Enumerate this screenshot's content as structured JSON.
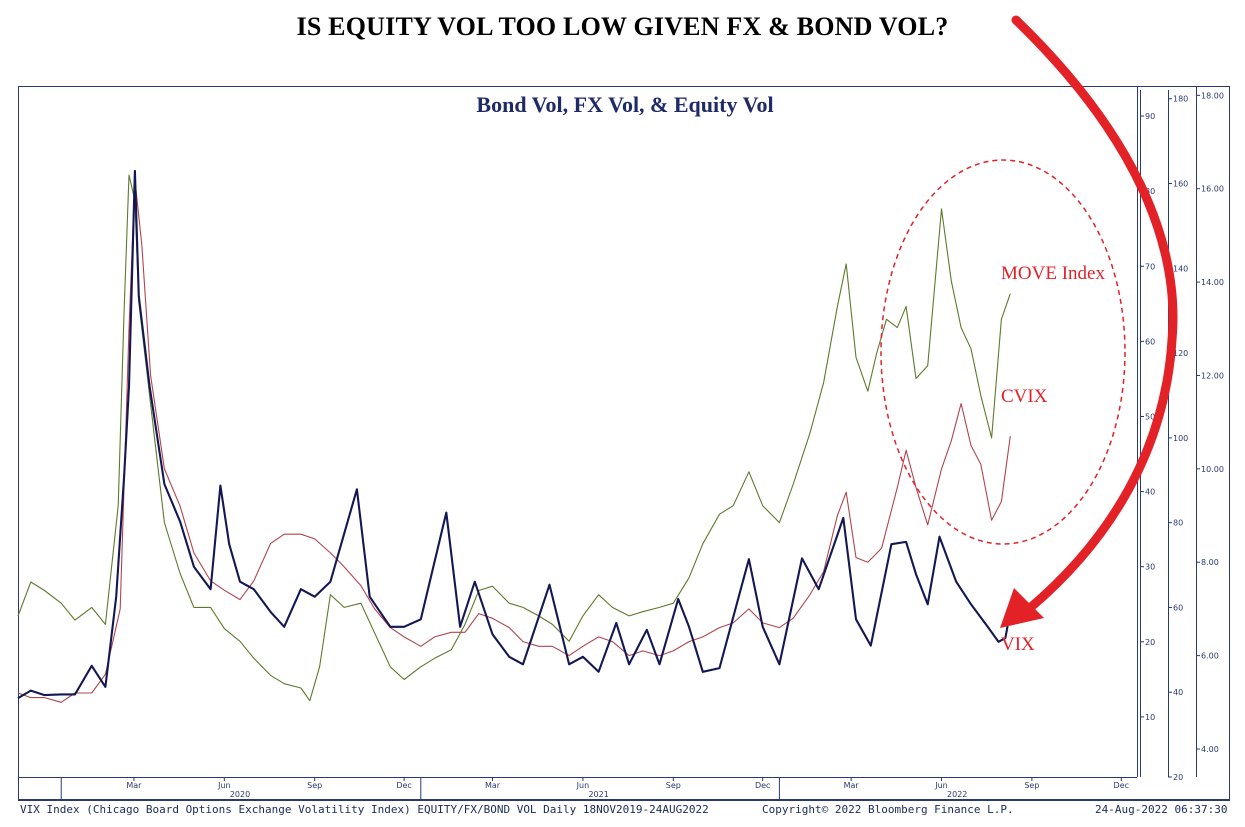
{
  "headline": "IS EQUITY VOL TOO LOW GIVEN FX & BOND VOL?",
  "footer": {
    "description": "VIX Index (Chicago Board Options Exchange Volatility Index) EQUITY/FX/BOND VOL  Daily 18NOV2019-24AUG2022",
    "copyright": "Copyright© 2022 Bloomberg Finance L.P.",
    "timestamp": "24-Aug-2022 06:37:30"
  },
  "annotations": {
    "move_label": "MOVE Index",
    "cvix_label": "CVIX",
    "vix_label": "VIX"
  },
  "colors": {
    "vix": "#141852",
    "move": "#5e7a2c",
    "cvix": "#b0454e",
    "annotation": "#e32228",
    "axis": "#2a3a6e",
    "title": "#1f2a66"
  },
  "chart_data": {
    "type": "line",
    "title": "Bond Vol, FX Vol, & Equity Vol",
    "date_range": [
      "2019-11-18",
      "2022-12-31"
    ],
    "x_tick_labels": [
      "Mar",
      "Jun",
      "Sep",
      "Dec",
      "Mar",
      "Jun",
      "Sep",
      "Dec",
      "Mar",
      "Jun",
      "Sep",
      "Dec"
    ],
    "x_year_labels": [
      "2020",
      "2021",
      "2022"
    ],
    "axes": {
      "vix": {
        "ticks": [
          10,
          20,
          30,
          40,
          50,
          60,
          70,
          80,
          90
        ],
        "range": [
          2,
          94
        ]
      },
      "move": {
        "ticks": [
          20,
          40,
          60,
          80,
          100,
          120,
          140,
          160,
          180
        ],
        "range": [
          20,
          183
        ]
      },
      "cvix": {
        "ticks": [
          "4.00",
          "6.00",
          "8.00",
          "10.00",
          "12.00",
          "14.00",
          "16.00",
          "18.00"
        ],
        "range": [
          3.4,
          18.2
        ]
      }
    },
    "series": [
      {
        "name": "MOVE Index",
        "axis": "move",
        "values": [
          [
            "2019-11-18",
            58
          ],
          [
            "2019-12-01",
            66
          ],
          [
            "2019-12-15",
            64
          ],
          [
            "2020-01-01",
            61
          ],
          [
            "2020-01-15",
            57
          ],
          [
            "2020-02-01",
            60
          ],
          [
            "2020-02-15",
            56
          ],
          [
            "2020-02-28",
            84
          ],
          [
            "2020-03-05",
            130
          ],
          [
            "2020-03-10",
            162
          ],
          [
            "2020-03-16",
            156
          ],
          [
            "2020-03-20",
            132
          ],
          [
            "2020-03-31",
            110
          ],
          [
            "2020-04-15",
            80
          ],
          [
            "2020-05-01",
            68
          ],
          [
            "2020-05-15",
            60
          ],
          [
            "2020-06-01",
            60
          ],
          [
            "2020-06-15",
            55
          ],
          [
            "2020-07-01",
            52
          ],
          [
            "2020-07-15",
            48
          ],
          [
            "2020-08-01",
            44
          ],
          [
            "2020-08-15",
            42
          ],
          [
            "2020-09-01",
            41
          ],
          [
            "2020-09-10",
            38
          ],
          [
            "2020-09-20",
            46
          ],
          [
            "2020-10-01",
            63
          ],
          [
            "2020-10-15",
            60
          ],
          [
            "2020-11-01",
            61
          ],
          [
            "2020-11-15",
            54
          ],
          [
            "2020-12-01",
            46
          ],
          [
            "2020-12-15",
            43
          ],
          [
            "2021-01-01",
            46
          ],
          [
            "2021-01-15",
            48
          ],
          [
            "2021-02-01",
            50
          ],
          [
            "2021-02-15",
            56
          ],
          [
            "2021-03-01",
            64
          ],
          [
            "2021-03-15",
            65
          ],
          [
            "2021-04-01",
            61
          ],
          [
            "2021-04-15",
            60
          ],
          [
            "2021-05-01",
            58
          ],
          [
            "2021-05-15",
            56
          ],
          [
            "2021-06-01",
            52
          ],
          [
            "2021-06-15",
            58
          ],
          [
            "2021-07-01",
            63
          ],
          [
            "2021-07-15",
            60
          ],
          [
            "2021-08-01",
            58
          ],
          [
            "2021-08-15",
            59
          ],
          [
            "2021-09-01",
            60
          ],
          [
            "2021-09-15",
            61
          ],
          [
            "2021-10-01",
            67
          ],
          [
            "2021-10-15",
            75
          ],
          [
            "2021-11-01",
            82
          ],
          [
            "2021-11-15",
            84
          ],
          [
            "2021-12-01",
            92
          ],
          [
            "2021-12-15",
            84
          ],
          [
            "2022-01-01",
            80
          ],
          [
            "2022-01-15",
            89
          ],
          [
            "2022-02-01",
            101
          ],
          [
            "2022-02-15",
            113
          ],
          [
            "2022-03-01",
            131
          ],
          [
            "2022-03-10",
            141
          ],
          [
            "2022-03-20",
            119
          ],
          [
            "2022-04-01",
            111
          ],
          [
            "2022-04-10",
            120
          ],
          [
            "2022-04-20",
            128
          ],
          [
            "2022-05-01",
            126
          ],
          [
            "2022-05-10",
            131
          ],
          [
            "2022-05-20",
            114
          ],
          [
            "2022-06-01",
            117
          ],
          [
            "2022-06-15",
            154
          ],
          [
            "2022-06-25",
            137
          ],
          [
            "2022-07-05",
            126
          ],
          [
            "2022-07-15",
            121
          ],
          [
            "2022-07-25",
            110
          ],
          [
            "2022-08-05",
            100
          ],
          [
            "2022-08-15",
            128
          ],
          [
            "2022-08-24",
            134
          ]
        ]
      },
      {
        "name": "CVIX",
        "axis": "cvix",
        "values": [
          [
            "2019-11-18",
            5.2
          ],
          [
            "2019-12-01",
            5.1
          ],
          [
            "2019-12-15",
            5.1
          ],
          [
            "2020-01-01",
            5.0
          ],
          [
            "2020-01-15",
            5.2
          ],
          [
            "2020-02-01",
            5.2
          ],
          [
            "2020-02-15",
            5.6
          ],
          [
            "2020-03-01",
            7.0
          ],
          [
            "2020-03-10",
            13.0
          ],
          [
            "2020-03-16",
            16.2
          ],
          [
            "2020-03-23",
            14.8
          ],
          [
            "2020-04-01",
            12.0
          ],
          [
            "2020-04-15",
            10.0
          ],
          [
            "2020-05-01",
            9.2
          ],
          [
            "2020-05-15",
            8.2
          ],
          [
            "2020-06-01",
            7.6
          ],
          [
            "2020-06-15",
            7.4
          ],
          [
            "2020-07-01",
            7.2
          ],
          [
            "2020-07-15",
            7.6
          ],
          [
            "2020-08-01",
            8.4
          ],
          [
            "2020-08-15",
            8.6
          ],
          [
            "2020-09-01",
            8.6
          ],
          [
            "2020-09-15",
            8.5
          ],
          [
            "2020-10-01",
            8.2
          ],
          [
            "2020-10-15",
            7.9
          ],
          [
            "2020-11-01",
            7.5
          ],
          [
            "2020-11-15",
            7.0
          ],
          [
            "2020-12-01",
            6.6
          ],
          [
            "2020-12-15",
            6.4
          ],
          [
            "2021-01-01",
            6.2
          ],
          [
            "2021-01-15",
            6.4
          ],
          [
            "2021-02-01",
            6.5
          ],
          [
            "2021-02-15",
            6.5
          ],
          [
            "2021-03-01",
            6.9
          ],
          [
            "2021-03-15",
            6.8
          ],
          [
            "2021-04-01",
            6.6
          ],
          [
            "2021-04-15",
            6.3
          ],
          [
            "2021-05-01",
            6.2
          ],
          [
            "2021-05-15",
            6.2
          ],
          [
            "2021-06-01",
            6.0
          ],
          [
            "2021-06-15",
            6.2
          ],
          [
            "2021-07-01",
            6.4
          ],
          [
            "2021-07-15",
            6.3
          ],
          [
            "2021-08-01",
            6.0
          ],
          [
            "2021-08-15",
            6.1
          ],
          [
            "2021-09-01",
            6.0
          ],
          [
            "2021-09-15",
            6.1
          ],
          [
            "2021-10-01",
            6.3
          ],
          [
            "2021-10-15",
            6.4
          ],
          [
            "2021-11-01",
            6.6
          ],
          [
            "2021-11-15",
            6.7
          ],
          [
            "2021-12-01",
            7.0
          ],
          [
            "2021-12-15",
            6.7
          ],
          [
            "2022-01-01",
            6.6
          ],
          [
            "2022-01-15",
            6.8
          ],
          [
            "2022-02-01",
            7.3
          ],
          [
            "2022-02-15",
            7.8
          ],
          [
            "2022-03-01",
            9.0
          ],
          [
            "2022-03-10",
            9.5
          ],
          [
            "2022-03-20",
            8.1
          ],
          [
            "2022-04-01",
            8.0
          ],
          [
            "2022-04-15",
            8.3
          ],
          [
            "2022-05-01",
            9.6
          ],
          [
            "2022-05-10",
            10.4
          ],
          [
            "2022-05-20",
            9.6
          ],
          [
            "2022-06-01",
            8.8
          ],
          [
            "2022-06-15",
            10.0
          ],
          [
            "2022-06-25",
            10.6
          ],
          [
            "2022-07-05",
            11.4
          ],
          [
            "2022-07-15",
            10.5
          ],
          [
            "2022-07-25",
            10.1
          ],
          [
            "2022-08-05",
            8.9
          ],
          [
            "2022-08-15",
            9.3
          ],
          [
            "2022-08-24",
            10.7
          ]
        ]
      },
      {
        "name": "VIX",
        "axis": "vix",
        "values": [
          [
            "2019-11-18",
            12.5
          ],
          [
            "2019-12-01",
            13.5
          ],
          [
            "2019-12-15",
            12.9
          ],
          [
            "2020-01-01",
            13.0
          ],
          [
            "2020-01-15",
            13.0
          ],
          [
            "2020-02-01",
            16.8
          ],
          [
            "2020-02-15",
            14.0
          ],
          [
            "2020-02-26",
            26.0
          ],
          [
            "2020-03-05",
            42.0
          ],
          [
            "2020-03-10",
            54.0
          ],
          [
            "2020-03-16",
            82.7
          ],
          [
            "2020-03-20",
            66.0
          ],
          [
            "2020-03-31",
            54.0
          ],
          [
            "2020-04-15",
            41.0
          ],
          [
            "2020-05-01",
            36.0
          ],
          [
            "2020-05-15",
            30.0
          ],
          [
            "2020-06-01",
            27.0
          ],
          [
            "2020-06-11",
            40.8
          ],
          [
            "2020-06-20",
            33.0
          ],
          [
            "2020-07-01",
            28.0
          ],
          [
            "2020-07-15",
            27.0
          ],
          [
            "2020-08-01",
            24.0
          ],
          [
            "2020-08-15",
            22.0
          ],
          [
            "2020-09-01",
            27.0
          ],
          [
            "2020-09-15",
            26.0
          ],
          [
            "2020-10-01",
            28.0
          ],
          [
            "2020-10-28",
            40.3
          ],
          [
            "2020-11-10",
            26.0
          ],
          [
            "2020-12-01",
            22.0
          ],
          [
            "2020-12-15",
            22.0
          ],
          [
            "2021-01-01",
            23.0
          ],
          [
            "2021-01-27",
            37.2
          ],
          [
            "2021-02-10",
            22.0
          ],
          [
            "2021-02-25",
            28.0
          ],
          [
            "2021-03-15",
            21.0
          ],
          [
            "2021-04-01",
            18.0
          ],
          [
            "2021-04-15",
            17.0
          ],
          [
            "2021-05-12",
            27.6
          ],
          [
            "2021-06-01",
            17.0
          ],
          [
            "2021-06-15",
            18.0
          ],
          [
            "2021-07-01",
            16.0
          ],
          [
            "2021-07-19",
            22.5
          ],
          [
            "2021-08-01",
            17.0
          ],
          [
            "2021-08-19",
            21.6
          ],
          [
            "2021-09-01",
            17.0
          ],
          [
            "2021-09-20",
            25.7
          ],
          [
            "2021-10-01",
            22.0
          ],
          [
            "2021-10-15",
            16.0
          ],
          [
            "2021-11-01",
            16.5
          ],
          [
            "2021-11-26",
            28.6
          ],
          [
            "2021-12-01",
            31.0
          ],
          [
            "2021-12-15",
            22.0
          ],
          [
            "2022-01-01",
            17.0
          ],
          [
            "2022-01-24",
            31.1
          ],
          [
            "2022-02-10",
            27.0
          ],
          [
            "2022-03-07",
            36.5
          ],
          [
            "2022-03-20",
            23.0
          ],
          [
            "2022-04-04",
            19.5
          ],
          [
            "2022-04-25",
            33.0
          ],
          [
            "2022-05-10",
            33.3
          ],
          [
            "2022-05-20",
            29.0
          ],
          [
            "2022-06-01",
            25.0
          ],
          [
            "2022-06-13",
            34.0
          ],
          [
            "2022-06-30",
            28.0
          ],
          [
            "2022-07-15",
            25.0
          ],
          [
            "2022-08-01",
            22.0
          ],
          [
            "2022-08-12",
            20.0
          ],
          [
            "2022-08-19",
            20.5
          ],
          [
            "2022-08-24",
            24.1
          ]
        ]
      }
    ]
  }
}
